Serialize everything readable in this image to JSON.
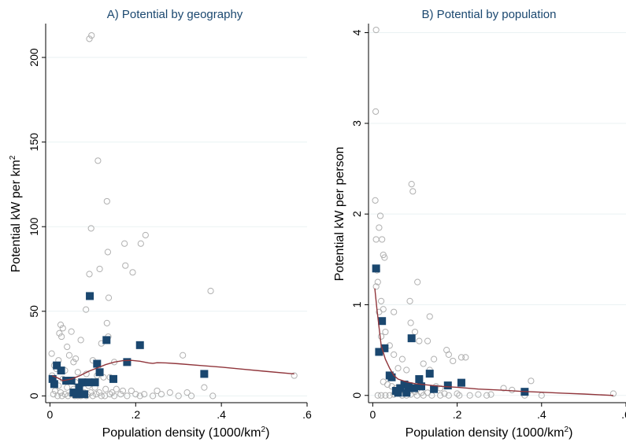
{
  "colors": {
    "background": "#ffffff",
    "title": "#1a476f",
    "grid": "#eaf2f3",
    "scatter_stroke": "#b0b0b0",
    "highlight": "#1a476f",
    "fit_line": "#90353b",
    "axis": "#000000"
  },
  "chart_data": [
    {
      "type": "scatter",
      "title": "A) Potential by geography",
      "xlabel": "Population density (1000/km²)",
      "xlabel_main": "Population density (1000/km",
      "xlabel_sup": "2",
      "xlabel_end": ")",
      "ylabel": "Potential kW per km²",
      "ylabel_main": "Potential kW per km",
      "ylabel_sup": "2",
      "xlim": [
        -0.01,
        0.6
      ],
      "ylim": [
        -4,
        220
      ],
      "xticks": [
        0,
        0.2,
        0.4,
        0.6
      ],
      "xtick_labels": [
        "0",
        ".2",
        ".4",
        ".6"
      ],
      "yticks": [
        0,
        50,
        100,
        150,
        200
      ],
      "ytick_labels": [
        "0",
        "50",
        "100",
        "150",
        "200"
      ],
      "grid": true,
      "series": [
        {
          "marker": "hollow-circle",
          "points": [
            [
              0.097,
              213
            ],
            [
              0.092,
              211
            ],
            [
              0.112,
              139
            ],
            [
              0.133,
              115
            ],
            [
              0.096,
              99
            ],
            [
              0.223,
              95
            ],
            [
              0.174,
              90
            ],
            [
              0.212,
              90
            ],
            [
              0.135,
              85
            ],
            [
              0.176,
              77
            ],
            [
              0.116,
              75
            ],
            [
              0.193,
              73
            ],
            [
              0.092,
              72
            ],
            [
              0.375,
              62
            ],
            [
              0.137,
              58
            ],
            [
              0.084,
              51
            ],
            [
              0.133,
              43
            ],
            [
              0.025,
              42
            ],
            [
              0.03,
              40
            ],
            [
              0.05,
              38
            ],
            [
              0.022,
              37
            ],
            [
              0.027,
              35
            ],
            [
              0.136,
              35
            ],
            [
              0.072,
              33
            ],
            [
              0.12,
              31
            ],
            [
              0.04,
              29
            ],
            [
              0.004,
              25
            ],
            [
              0.045,
              24
            ],
            [
              0.06,
              22
            ],
            [
              0.31,
              24
            ],
            [
              0.1,
              21
            ],
            [
              0.055,
              20
            ],
            [
              0.02,
              21
            ],
            [
              0.15,
              20
            ],
            [
              0.18,
              20
            ],
            [
              0.01,
              18
            ],
            [
              0.015,
              16
            ],
            [
              0.035,
              15
            ],
            [
              0.065,
              14
            ],
            [
              0.085,
              13
            ],
            [
              0.11,
              12
            ],
            [
              0.125,
              11
            ],
            [
              0.14,
              11
            ],
            [
              0.005,
              12
            ],
            [
              0.03,
              10
            ],
            [
              0.045,
              9
            ],
            [
              0.06,
              8
            ],
            [
              0.075,
              7
            ],
            [
              0.09,
              6
            ],
            [
              0.105,
              5
            ],
            [
              0.13,
              4
            ],
            [
              0.155,
              4
            ],
            [
              0.17,
              3
            ],
            [
              0.19,
              3
            ],
            [
              0.25,
              3
            ],
            [
              0.28,
              2
            ],
            [
              0.32,
              2
            ],
            [
              0.36,
              5
            ],
            [
              0.57,
              12
            ],
            [
              0.01,
              8
            ],
            [
              0.02,
              6
            ],
            [
              0.04,
              5
            ],
            [
              0.055,
              4
            ],
            [
              0.07,
              3
            ],
            [
              0.08,
              2
            ],
            [
              0.095,
              2
            ],
            [
              0.115,
              2
            ],
            [
              0.14,
              1
            ],
            [
              0.165,
              1
            ],
            [
              0.2,
              1
            ],
            [
              0.22,
              1
            ],
            [
              0.26,
              1
            ],
            [
              0.3,
              0
            ],
            [
              0.012,
              3
            ],
            [
              0.025,
              2
            ],
            [
              0.035,
              1
            ],
            [
              0.05,
              1
            ],
            [
              0.065,
              0
            ],
            [
              0.085,
              0
            ],
            [
              0.1,
              0
            ],
            [
              0.12,
              0
            ],
            [
              0.15,
              0
            ],
            [
              0.18,
              0
            ],
            [
              0.21,
              0
            ],
            [
              0.24,
              0
            ],
            [
              0.33,
              0
            ],
            [
              0.38,
              0
            ],
            [
              0.008,
              1
            ],
            [
              0.018,
              0
            ],
            [
              0.028,
              0
            ],
            [
              0.042,
              0
            ],
            [
              0.058,
              0
            ],
            [
              0.072,
              0
            ],
            [
              0.087,
              1
            ],
            [
              0.108,
              1
            ],
            [
              0.128,
              0
            ],
            [
              0.145,
              2
            ]
          ]
        },
        {
          "marker": "filled-square",
          "points": [
            [
              0.093,
              59
            ],
            [
              0.21,
              30
            ],
            [
              0.132,
              33
            ],
            [
              0.016,
              18
            ],
            [
              0.026,
              15
            ],
            [
              0.006,
              10
            ],
            [
              0.038,
              9
            ],
            [
              0.05,
              9
            ],
            [
              0.075,
              8
            ],
            [
              0.09,
              8
            ],
            [
              0.105,
              8
            ],
            [
              0.148,
              10
            ],
            [
              0.11,
              19
            ],
            [
              0.116,
              14
            ],
            [
              0.18,
              20
            ],
            [
              0.36,
              13
            ],
            [
              0.01,
              7
            ],
            [
              0.068,
              5
            ],
            [
              0.055,
              2
            ],
            [
              0.08,
              1
            ],
            [
              0.062,
              1
            ]
          ]
        },
        {
          "marker": "line",
          "points": [
            [
              0.005,
              12
            ],
            [
              0.015,
              11
            ],
            [
              0.03,
              9
            ],
            [
              0.05,
              10
            ],
            [
              0.07,
              12
            ],
            [
              0.09,
              14.5
            ],
            [
              0.11,
              16.5
            ],
            [
              0.13,
              18.5
            ],
            [
              0.15,
              20
            ],
            [
              0.17,
              20.8
            ],
            [
              0.19,
              21
            ],
            [
              0.21,
              20.5
            ],
            [
              0.23,
              19.5
            ],
            [
              0.24,
              19.2
            ],
            [
              0.25,
              19.6
            ],
            [
              0.27,
              19.5
            ],
            [
              0.3,
              19
            ],
            [
              0.35,
              18
            ],
            [
              0.4,
              17
            ],
            [
              0.45,
              15.8
            ],
            [
              0.5,
              14.6
            ],
            [
              0.57,
              13
            ]
          ]
        }
      ]
    },
    {
      "type": "scatter",
      "title": "B) Potential by population",
      "xlabel": "Population density (1000/km²)",
      "xlabel_main": "Population density (1000/km",
      "xlabel_sup": "2",
      "xlabel_end": ")",
      "ylabel": "Potential kW per person",
      "xlim": [
        -0.01,
        0.6
      ],
      "ylim": [
        -0.08,
        4.1
      ],
      "xticks": [
        0,
        0.2,
        0.4,
        0.6
      ],
      "xtick_labels": [
        "0",
        ".2",
        ".4",
        ".6"
      ],
      "yticks": [
        0,
        1,
        2,
        3,
        4
      ],
      "ytick_labels": [
        "0",
        "1",
        "2",
        "3",
        "4"
      ],
      "grid": true,
      "series": [
        {
          "marker": "hollow-circle",
          "points": [
            [
              0.008,
              4.03
            ],
            [
              0.007,
              3.13
            ],
            [
              0.092,
              2.33
            ],
            [
              0.095,
              2.25
            ],
            [
              0.006,
              2.15
            ],
            [
              0.018,
              1.98
            ],
            [
              0.015,
              1.85
            ],
            [
              0.008,
              1.72
            ],
            [
              0.022,
              1.72
            ],
            [
              0.025,
              1.55
            ],
            [
              0.028,
              1.52
            ],
            [
              0.01,
              1.38
            ],
            [
              0.106,
              1.25
            ],
            [
              0.012,
              1.25
            ],
            [
              0.008,
              1.2
            ],
            [
              0.088,
              1.04
            ],
            [
              0.02,
              1.04
            ],
            [
              0.025,
              0.95
            ],
            [
              0.015,
              0.92
            ],
            [
              0.05,
              0.92
            ],
            [
              0.135,
              0.87
            ],
            [
              0.09,
              0.8
            ],
            [
              0.1,
              0.7
            ],
            [
              0.03,
              0.7
            ],
            [
              0.02,
              0.65
            ],
            [
              0.11,
              0.6
            ],
            [
              0.13,
              0.6
            ],
            [
              0.04,
              0.55
            ],
            [
              0.175,
              0.5
            ],
            [
              0.18,
              0.45
            ],
            [
              0.21,
              0.42
            ],
            [
              0.22,
              0.42
            ],
            [
              0.05,
              0.45
            ],
            [
              0.07,
              0.4
            ],
            [
              0.145,
              0.4
            ],
            [
              0.19,
              0.38
            ],
            [
              0.12,
              0.35
            ],
            [
              0.06,
              0.3
            ],
            [
              0.08,
              0.28
            ],
            [
              0.135,
              0.28
            ],
            [
              0.375,
              0.16
            ],
            [
              0.31,
              0.08
            ],
            [
              0.33,
              0.06
            ],
            [
              0.15,
              0.1
            ],
            [
              0.16,
              0.08
            ],
            [
              0.025,
              0.15
            ],
            [
              0.035,
              0.12
            ],
            [
              0.045,
              0.1
            ],
            [
              0.055,
              0.08
            ],
            [
              0.065,
              0.06
            ],
            [
              0.075,
              0.05
            ],
            [
              0.085,
              0.04
            ],
            [
              0.1,
              0.04
            ],
            [
              0.115,
              0.03
            ],
            [
              0.13,
              0.03
            ],
            [
              0.17,
              0.02
            ],
            [
              0.2,
              0.02
            ],
            [
              0.25,
              0.01
            ],
            [
              0.28,
              0.01
            ],
            [
              0.36,
              0.0
            ],
            [
              0.4,
              0.0
            ],
            [
              0.57,
              0.02
            ],
            [
              0.012,
              0.0
            ],
            [
              0.02,
              0.0
            ],
            [
              0.03,
              0.0
            ],
            [
              0.04,
              0.0
            ],
            [
              0.05,
              0.01
            ],
            [
              0.06,
              0.02
            ],
            [
              0.07,
              0.0
            ],
            [
              0.08,
              0.0
            ],
            [
              0.09,
              0.01
            ],
            [
              0.105,
              0.0
            ],
            [
              0.12,
              0.0
            ],
            [
              0.14,
              0.0
            ],
            [
              0.16,
              0.0
            ],
            [
              0.18,
              0.0
            ],
            [
              0.205,
              0.0
            ],
            [
              0.23,
              0.0
            ],
            [
              0.27,
              0.0
            ]
          ]
        },
        {
          "marker": "filled-square",
          "points": [
            [
              0.008,
              1.4
            ],
            [
              0.022,
              0.82
            ],
            [
              0.092,
              0.63
            ],
            [
              0.028,
              0.52
            ],
            [
              0.015,
              0.48
            ],
            [
              0.04,
              0.22
            ],
            [
              0.045,
              0.2
            ],
            [
              0.135,
              0.24
            ],
            [
              0.11,
              0.18
            ],
            [
              0.21,
              0.14
            ],
            [
              0.178,
              0.11
            ],
            [
              0.075,
              0.12
            ],
            [
              0.065,
              0.08
            ],
            [
              0.085,
              0.1
            ],
            [
              0.098,
              0.08
            ],
            [
              0.115,
              0.1
            ],
            [
              0.145,
              0.07
            ],
            [
              0.055,
              0.05
            ],
            [
              0.06,
              0.03
            ],
            [
              0.36,
              0.04
            ],
            [
              0.08,
              0.03
            ]
          ]
        },
        {
          "marker": "line",
          "points": [
            [
              0.005,
              1.18
            ],
            [
              0.01,
              0.95
            ],
            [
              0.015,
              0.75
            ],
            [
              0.02,
              0.55
            ],
            [
              0.03,
              0.4
            ],
            [
              0.04,
              0.3
            ],
            [
              0.05,
              0.22
            ],
            [
              0.06,
              0.18
            ],
            [
              0.08,
              0.15
            ],
            [
              0.1,
              0.13
            ],
            [
              0.12,
              0.12
            ],
            [
              0.14,
              0.11
            ],
            [
              0.16,
              0.1
            ],
            [
              0.2,
              0.09
            ],
            [
              0.25,
              0.07
            ],
            [
              0.3,
              0.06
            ],
            [
              0.35,
              0.045
            ],
            [
              0.4,
              0.035
            ],
            [
              0.45,
              0.025
            ],
            [
              0.5,
              0.015
            ],
            [
              0.57,
              0.0
            ]
          ]
        }
      ]
    }
  ]
}
